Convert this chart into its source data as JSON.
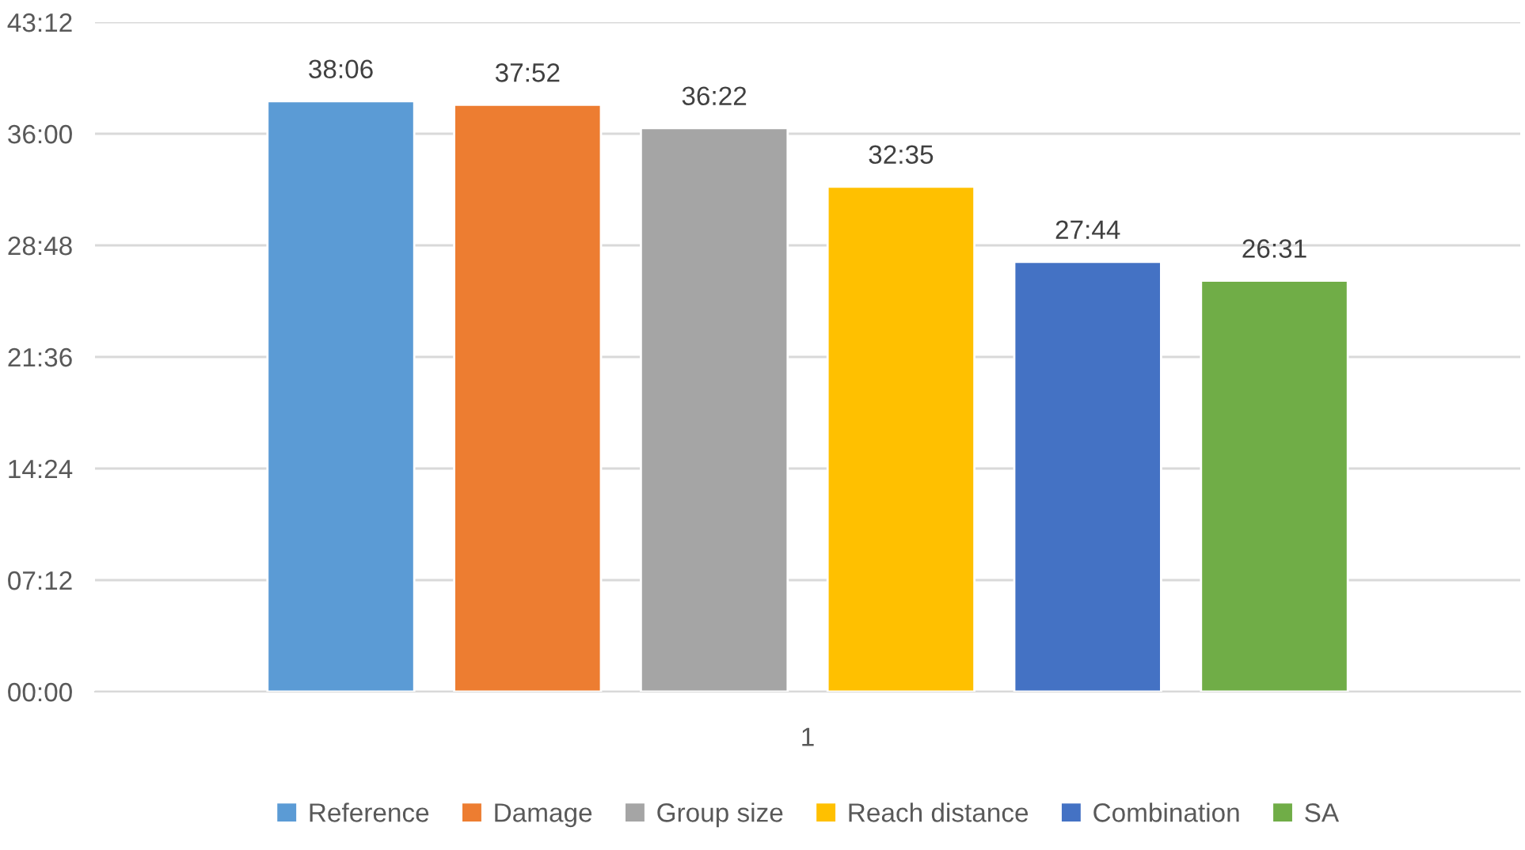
{
  "chart_data": {
    "type": "bar",
    "categories": [
      "1"
    ],
    "series": [
      {
        "name": "Reference",
        "color": "#5b9bd5",
        "values": [
          38.1
        ],
        "value_labels": [
          "38:06"
        ]
      },
      {
        "name": "Damage",
        "color": "#ed7d31",
        "values": [
          37.8667
        ],
        "value_labels": [
          "37:52"
        ]
      },
      {
        "name": "Group size",
        "color": "#a5a5a5",
        "values": [
          36.3667
        ],
        "value_labels": [
          "36:22"
        ]
      },
      {
        "name": "Reach distance",
        "color": "#ffc000",
        "values": [
          32.5833
        ],
        "value_labels": [
          "32:35"
        ]
      },
      {
        "name": "Combination",
        "color": "#4472c4",
        "values": [
          27.7333
        ],
        "value_labels": [
          "27:44"
        ]
      },
      {
        "name": "SA",
        "color": "#70ad47",
        "values": [
          26.5167
        ],
        "value_labels": [
          "26:31"
        ]
      }
    ],
    "ylim": [
      0,
      43.2
    ],
    "yticks": [
      {
        "value": 0,
        "label": "00:00"
      },
      {
        "value": 7.2,
        "label": "07:12"
      },
      {
        "value": 14.4,
        "label": "14:24"
      },
      {
        "value": 21.6,
        "label": "21:36"
      },
      {
        "value": 28.8,
        "label": "28:48"
      },
      {
        "value": 36,
        "label": "36:00"
      },
      {
        "value": 43.2,
        "label": "43:12"
      }
    ],
    "grid": "y",
    "legend": "bottom"
  }
}
